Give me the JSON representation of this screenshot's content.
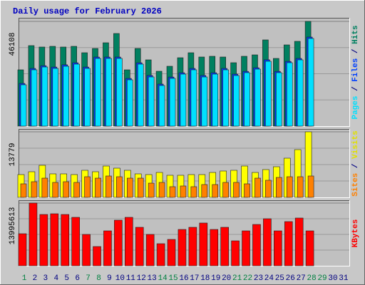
{
  "title": "Daily usage for February 2026",
  "legend_separator": " / ",
  "chart_data": [
    {
      "type": "bar",
      "categories": [
        "1",
        "2",
        "3",
        "4",
        "5",
        "6",
        "7",
        "8",
        "9",
        "10",
        "11",
        "12",
        "13",
        "14",
        "15",
        "16",
        "17",
        "18",
        "19",
        "20",
        "21",
        "22",
        "23",
        "24",
        "25",
        "26",
        "27",
        "28",
        "29",
        "30",
        "31"
      ],
      "ylim": [
        0,
        46108
      ],
      "yticks": [
        46108
      ],
      "series": [
        {
          "name": "Hits",
          "color": "#008060",
          "values": [
            24780,
            35443,
            34816,
            35130,
            34816,
            35130,
            32307,
            34189,
            36698,
            40776,
            24780,
            34189,
            29170,
            24152,
            26348,
            30111,
            32307,
            30425,
            30739,
            30425,
            27916,
            30739,
            31366,
            37953,
            29798,
            35757,
            37326,
            46108,
            null,
            null,
            null
          ]
        },
        {
          "name": "Files",
          "color": "#0040ff",
          "values": [
            18800,
            25400,
            26600,
            26000,
            27000,
            27900,
            26000,
            30400,
            30400,
            30400,
            21000,
            27900,
            22300,
            18500,
            21600,
            23500,
            25400,
            22300,
            23500,
            25400,
            22900,
            24100,
            25700,
            29200,
            24100,
            28500,
            29800,
            39200,
            null,
            null,
            null
          ]
        },
        {
          "name": "Pages",
          "color": "#00e0ff",
          "values": [
            18192,
            24779,
            26034,
            25406,
            26348,
            27288,
            25406,
            29798,
            29798,
            29798,
            20388,
            27288,
            21643,
            17878,
            21015,
            22897,
            24779,
            21643,
            22897,
            24779,
            22270,
            23525,
            25093,
            28543,
            23525,
            27916,
            29170,
            38580,
            null,
            null,
            null
          ]
        }
      ]
    },
    {
      "type": "bar",
      "categories": [
        "1",
        "2",
        "3",
        "4",
        "5",
        "6",
        "7",
        "8",
        "9",
        "10",
        "11",
        "12",
        "13",
        "14",
        "15",
        "16",
        "17",
        "18",
        "19",
        "20",
        "21",
        "22",
        "23",
        "24",
        "25",
        "26",
        "27",
        "28",
        "29",
        "30",
        "31"
      ],
      "ylim": [
        0,
        13779
      ],
      "yticks": [
        13779
      ],
      "series": [
        {
          "name": "Visits",
          "color": "#ffff00",
          "values": [
            4793,
            5392,
            6740,
            4942,
            4942,
            4793,
            5691,
            5392,
            6590,
            6141,
            5691,
            4942,
            4793,
            5242,
            4643,
            4643,
            4793,
            4793,
            5242,
            5542,
            5691,
            6590,
            5242,
            5841,
            6440,
            8238,
            10035,
            13779,
            null,
            null,
            null
          ]
        },
        {
          "name": "Sites",
          "color": "#ff8000",
          "values": [
            2846,
            3295,
            4044,
            3145,
            3295,
            3145,
            4343,
            4044,
            4493,
            4343,
            4044,
            4044,
            2995,
            3145,
            2247,
            2396,
            2247,
            2696,
            2696,
            3145,
            3145,
            2846,
            4044,
            3595,
            4194,
            4343,
            4343,
            4493,
            null,
            null,
            null
          ]
        }
      ]
    },
    {
      "type": "bar",
      "categories": [
        "1",
        "2",
        "3",
        "4",
        "5",
        "6",
        "7",
        "8",
        "9",
        "10",
        "11",
        "12",
        "13",
        "14",
        "15",
        "16",
        "17",
        "18",
        "19",
        "20",
        "21",
        "22",
        "23",
        "24",
        "25",
        "26",
        "27",
        "28",
        "29",
        "30",
        "31"
      ],
      "category_colors": [
        "#008040",
        "#000080",
        "#000080",
        "#000080",
        "#000080",
        "#000080",
        "#008040",
        "#008040",
        "#000080",
        "#000080",
        "#000080",
        "#000080",
        "#000080",
        "#008040",
        "#008040",
        "#000080",
        "#000080",
        "#000080",
        "#000080",
        "#000080",
        "#008040",
        "#008040",
        "#000080",
        "#000080",
        "#000080",
        "#000080",
        "#000080",
        "#008040",
        "#008040",
        "#000080",
        "#000080"
      ],
      "ylim": [
        0,
        13995613
      ],
      "yticks": [
        13995613
      ],
      "series": [
        {
          "name": "KBytes",
          "color": "#ff0000",
          "values": [
            7156853,
            13995613,
            11450956,
            11609997,
            11450956,
            10814804,
            6997806,
            4294109,
            7793024,
            10178628,
            10814804,
            8588216,
            6997806,
            4930271,
            5884517,
            8111106,
            8588216,
            9542463,
            8111106,
            8588216,
            5566435,
            7793024,
            9224381,
            10496710,
            7793024,
            9860545,
            10655749,
            7793024,
            null,
            null,
            null
          ]
        }
      ]
    }
  ]
}
